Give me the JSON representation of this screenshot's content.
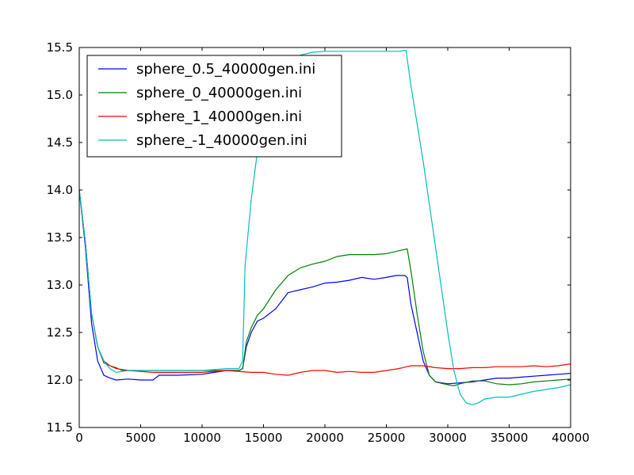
{
  "chart_data": {
    "type": "line",
    "title": "",
    "xlabel": "",
    "ylabel": "",
    "xlim": [
      0,
      40000
    ],
    "ylim": [
      11.5,
      15.5
    ],
    "xticks": [
      0,
      5000,
      10000,
      15000,
      20000,
      25000,
      30000,
      35000,
      40000
    ],
    "yticks": [
      11.5,
      12.0,
      12.5,
      13.0,
      13.5,
      14.0,
      14.5,
      15.0,
      15.5
    ],
    "xtick_labels": [
      "0",
      "5000",
      "10000",
      "15000",
      "20000",
      "25000",
      "30000",
      "35000",
      "40000"
    ],
    "ytick_labels": [
      "11.5",
      "12.0",
      "12.5",
      "13.0",
      "13.5",
      "14.0",
      "14.5",
      "15.0",
      "15.5"
    ],
    "grid": false,
    "legend_position": "top-left",
    "series": [
      {
        "name": "sphere_0.5_40000gen.ini",
        "color": "#0000ff",
        "points": [
          [
            0,
            14.0
          ],
          [
            500,
            13.4
          ],
          [
            1000,
            12.6
          ],
          [
            1500,
            12.2
          ],
          [
            2000,
            12.05
          ],
          [
            2500,
            12.02
          ],
          [
            3000,
            12.0
          ],
          [
            4000,
            12.01
          ],
          [
            5000,
            12.0
          ],
          [
            6000,
            12.0
          ],
          [
            6500,
            12.05
          ],
          [
            8000,
            12.05
          ],
          [
            10000,
            12.06
          ],
          [
            11000,
            12.08
          ],
          [
            12000,
            12.1
          ],
          [
            13000,
            12.1
          ],
          [
            13300,
            12.12
          ],
          [
            13600,
            12.35
          ],
          [
            14000,
            12.5
          ],
          [
            14500,
            12.62
          ],
          [
            15000,
            12.65
          ],
          [
            16000,
            12.75
          ],
          [
            17000,
            12.92
          ],
          [
            18000,
            12.95
          ],
          [
            19000,
            12.98
          ],
          [
            20000,
            13.02
          ],
          [
            21000,
            13.03
          ],
          [
            22000,
            13.05
          ],
          [
            23000,
            13.08
          ],
          [
            24000,
            13.06
          ],
          [
            25000,
            13.08
          ],
          [
            25800,
            13.1
          ],
          [
            26500,
            13.1
          ],
          [
            26700,
            13.08
          ],
          [
            27000,
            12.8
          ],
          [
            27500,
            12.5
          ],
          [
            28000,
            12.2
          ],
          [
            28500,
            12.05
          ],
          [
            29000,
            11.98
          ],
          [
            30000,
            11.96
          ],
          [
            31000,
            11.97
          ],
          [
            32000,
            11.98
          ],
          [
            33000,
            12.0
          ],
          [
            34000,
            12.02
          ],
          [
            35000,
            12.02
          ],
          [
            36000,
            12.03
          ],
          [
            37000,
            12.04
          ],
          [
            38000,
            12.05
          ],
          [
            39000,
            12.06
          ],
          [
            40000,
            12.07
          ]
        ]
      },
      {
        "name": "sphere_0_40000gen.ini",
        "color": "#008000",
        "points": [
          [
            0,
            14.0
          ],
          [
            500,
            13.45
          ],
          [
            1000,
            12.7
          ],
          [
            1500,
            12.35
          ],
          [
            2000,
            12.18
          ],
          [
            2500,
            12.15
          ],
          [
            3000,
            12.13
          ],
          [
            3500,
            12.1
          ],
          [
            4000,
            12.1
          ],
          [
            6000,
            12.1
          ],
          [
            8000,
            12.1
          ],
          [
            10000,
            12.1
          ],
          [
            12000,
            12.1
          ],
          [
            13000,
            12.1
          ],
          [
            13300,
            12.12
          ],
          [
            13600,
            12.4
          ],
          [
            14000,
            12.55
          ],
          [
            14500,
            12.68
          ],
          [
            15000,
            12.75
          ],
          [
            16000,
            12.95
          ],
          [
            17000,
            13.1
          ],
          [
            18000,
            13.18
          ],
          [
            19000,
            13.22
          ],
          [
            20000,
            13.25
          ],
          [
            21000,
            13.3
          ],
          [
            22000,
            13.32
          ],
          [
            23000,
            13.32
          ],
          [
            24000,
            13.32
          ],
          [
            25000,
            13.33
          ],
          [
            26000,
            13.36
          ],
          [
            26700,
            13.38
          ],
          [
            27000,
            13.15
          ],
          [
            27500,
            12.7
          ],
          [
            28000,
            12.3
          ],
          [
            28500,
            12.05
          ],
          [
            29000,
            11.98
          ],
          [
            30000,
            11.95
          ],
          [
            30500,
            11.94
          ],
          [
            31000,
            11.96
          ],
          [
            32000,
            11.99
          ],
          [
            33000,
            11.99
          ],
          [
            34000,
            11.96
          ],
          [
            35000,
            11.95
          ],
          [
            36000,
            11.96
          ],
          [
            37000,
            11.98
          ],
          [
            38000,
            11.99
          ],
          [
            39000,
            12.0
          ],
          [
            40000,
            12.01
          ]
        ]
      },
      {
        "name": "sphere_1_40000gen.ini",
        "color": "#ff0000",
        "points": [
          [
            0,
            14.0
          ],
          [
            500,
            13.45
          ],
          [
            1000,
            12.7
          ],
          [
            1500,
            12.35
          ],
          [
            2000,
            12.2
          ],
          [
            2500,
            12.15
          ],
          [
            3000,
            12.12
          ],
          [
            4000,
            12.1
          ],
          [
            6000,
            12.08
          ],
          [
            8000,
            12.08
          ],
          [
            10000,
            12.08
          ],
          [
            12000,
            12.1
          ],
          [
            14000,
            12.08
          ],
          [
            15000,
            12.08
          ],
          [
            16000,
            12.06
          ],
          [
            17000,
            12.05
          ],
          [
            18000,
            12.08
          ],
          [
            19000,
            12.1
          ],
          [
            20000,
            12.1
          ],
          [
            21000,
            12.08
          ],
          [
            22000,
            12.09
          ],
          [
            23000,
            12.08
          ],
          [
            24000,
            12.08
          ],
          [
            25000,
            12.1
          ],
          [
            26000,
            12.12
          ],
          [
            27000,
            12.15
          ],
          [
            28000,
            12.15
          ],
          [
            29000,
            12.13
          ],
          [
            30000,
            12.12
          ],
          [
            31000,
            12.12
          ],
          [
            32000,
            12.13
          ],
          [
            33000,
            12.13
          ],
          [
            34000,
            12.14
          ],
          [
            35000,
            12.14
          ],
          [
            36000,
            12.14
          ],
          [
            37000,
            12.15
          ],
          [
            38000,
            12.14
          ],
          [
            39000,
            12.15
          ],
          [
            40000,
            12.17
          ]
        ]
      },
      {
        "name": "sphere_-1_40000gen.ini",
        "color": "#00bfbf",
        "points": [
          [
            0,
            14.0
          ],
          [
            500,
            13.45
          ],
          [
            1000,
            12.7
          ],
          [
            1500,
            12.35
          ],
          [
            2000,
            12.2
          ],
          [
            2500,
            12.12
          ],
          [
            3000,
            12.08
          ],
          [
            4000,
            12.1
          ],
          [
            6000,
            12.1
          ],
          [
            8000,
            12.1
          ],
          [
            10000,
            12.1
          ],
          [
            12000,
            12.12
          ],
          [
            13000,
            12.12
          ],
          [
            13300,
            12.2
          ],
          [
            13500,
            13.2
          ],
          [
            14000,
            13.9
          ],
          [
            14500,
            14.4
          ],
          [
            15000,
            14.75
          ],
          [
            16000,
            15.1
          ],
          [
            17000,
            15.3
          ],
          [
            18000,
            15.42
          ],
          [
            19000,
            15.45
          ],
          [
            20000,
            15.46
          ],
          [
            22000,
            15.46
          ],
          [
            24000,
            15.46
          ],
          [
            26000,
            15.46
          ],
          [
            26600,
            15.47
          ],
          [
            27000,
            15.1
          ],
          [
            28000,
            14.3
          ],
          [
            29000,
            13.4
          ],
          [
            30000,
            12.5
          ],
          [
            30500,
            12.1
          ],
          [
            31000,
            11.85
          ],
          [
            31500,
            11.76
          ],
          [
            32000,
            11.74
          ],
          [
            32500,
            11.76
          ],
          [
            33000,
            11.8
          ],
          [
            34000,
            11.82
          ],
          [
            35000,
            11.82
          ],
          [
            36000,
            11.85
          ],
          [
            37000,
            11.88
          ],
          [
            38000,
            11.9
          ],
          [
            39000,
            11.92
          ],
          [
            40000,
            11.95
          ]
        ]
      }
    ]
  }
}
